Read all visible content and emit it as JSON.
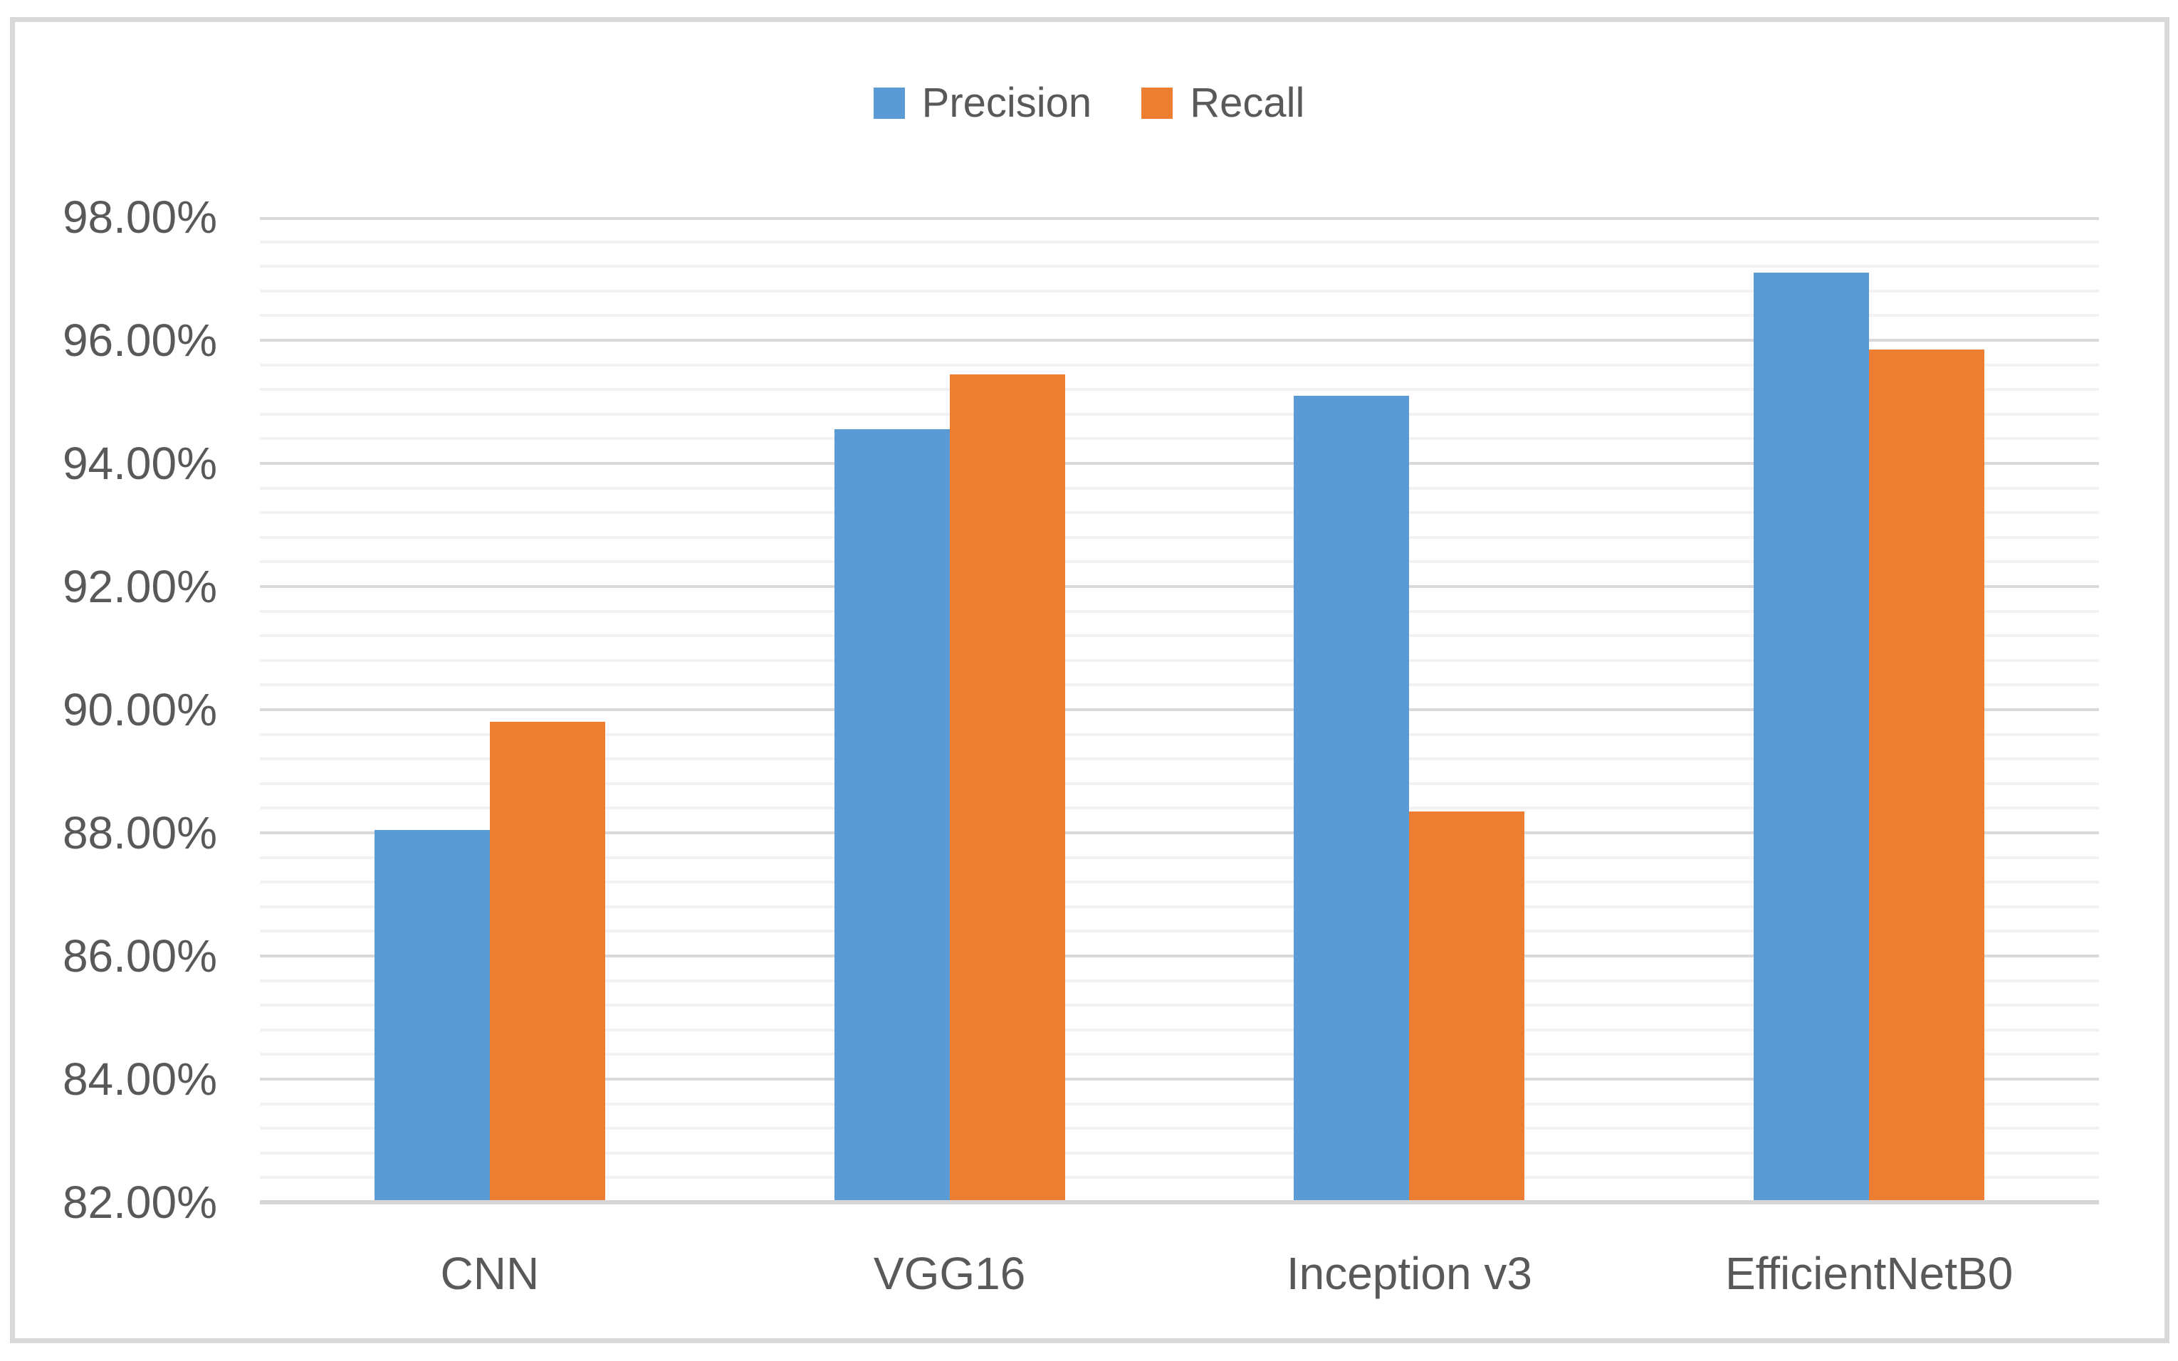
{
  "chart_data": {
    "type": "bar",
    "title": "",
    "xlabel": "",
    "ylabel": "",
    "categories": [
      "CNN",
      "VGG16",
      "Inception v3",
      "EfficientNetB0"
    ],
    "series": [
      {
        "name": "Precision",
        "color": "#5B9BD5",
        "values": [
          88.05,
          94.55,
          95.1,
          97.1
        ]
      },
      {
        "name": "Recall",
        "color": "#ED7D31",
        "values": [
          89.8,
          95.45,
          88.35,
          95.85
        ]
      }
    ],
    "ylim": [
      82,
      98
    ],
    "y_major_step": 2,
    "y_minor_step": 0.4,
    "y_tick_labels": [
      "82.00%",
      "84.00%",
      "86.00%",
      "88.00%",
      "90.00%",
      "92.00%",
      "94.00%",
      "96.00%",
      "98.00%"
    ],
    "legend_position": "top-center",
    "grid": "horizontal major and minor gridlines"
  },
  "colors": {
    "text": "#595959",
    "major_grid": "#D9D9D9",
    "minor_grid": "#F2F2F2",
    "axis_line": "#D6D6D6",
    "figure_border": "#D9D9D9",
    "background": "#FFFFFF"
  }
}
